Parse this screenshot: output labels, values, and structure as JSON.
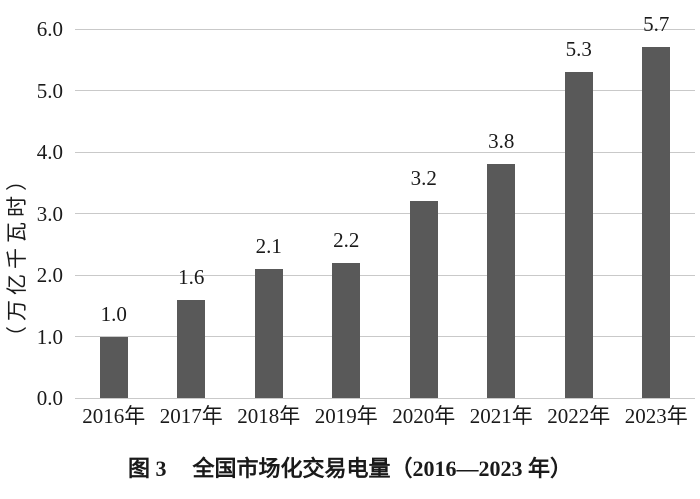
{
  "chart_data": {
    "type": "bar",
    "title": "图 3　全国市场化交易电量（2016—2023 年）",
    "caption_figure_label": "图 3",
    "caption_text": "全国市场化交易电量（2016—2023 年）",
    "ylabel": "（万亿千瓦时）",
    "xlabel": "",
    "categories": [
      "2016年",
      "2017年",
      "2018年",
      "2019年",
      "2020年",
      "2021年",
      "2022年",
      "2023年"
    ],
    "values": [
      1.0,
      1.6,
      2.1,
      2.2,
      3.2,
      3.8,
      5.3,
      5.7
    ],
    "value_labels": [
      "1.0",
      "1.6",
      "2.1",
      "2.2",
      "3.2",
      "3.8",
      "5.3",
      "5.7"
    ],
    "ylim": [
      0.0,
      6.0
    ],
    "yticks": [
      0.0,
      1.0,
      2.0,
      3.0,
      4.0,
      5.0,
      6.0
    ],
    "ytick_labels": [
      "0.0",
      "1.0",
      "2.0",
      "3.0",
      "4.0",
      "5.0",
      "6.0"
    ],
    "grid": "horizontal",
    "legend": "none",
    "colors": {
      "bar": "#595959",
      "gridline": "#c9c9c9",
      "text": "#1a1a1a"
    }
  }
}
